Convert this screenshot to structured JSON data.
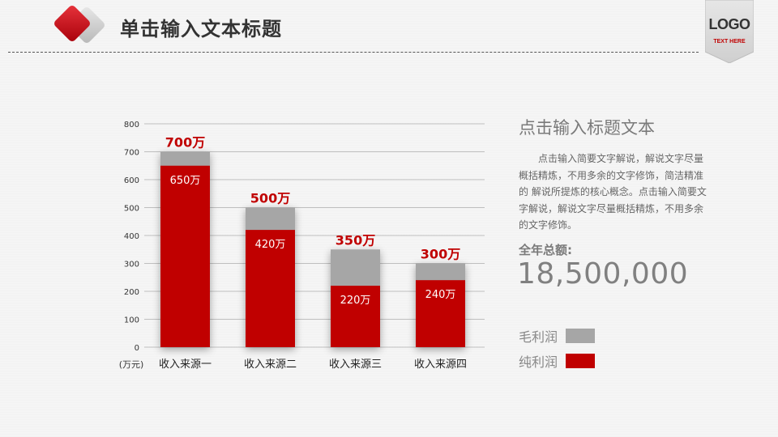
{
  "header": {
    "title": "单击输入文本标题",
    "logo": "LOGO",
    "logo_subtitle": "TEXT HERE"
  },
  "colors": {
    "accent": "#c00000",
    "gross": "#a6a6a6",
    "net": "#c00000"
  },
  "panel": {
    "title": "点击输入标题文本",
    "description": "点击输入简要文字解说，解说文字尽量概括精炼，不用多余的文字修饰，简洁精准的 解说所提炼的核心概念。点击输入简要文字解说，解说文字尽量概括精炼，不用多余的文字修饰。",
    "total_label": "全年总额:",
    "total_value": "18,500,000"
  },
  "chart_data": {
    "type": "bar",
    "xlabel": "(万元)",
    "ylabel": "",
    "ylim": [
      0,
      800
    ],
    "yticks": [
      0,
      100,
      200,
      300,
      400,
      500,
      600,
      700,
      800
    ],
    "grid": true,
    "legend_position": "right",
    "categories": [
      "收入来源一",
      "收入来源二",
      "收入来源三",
      "收入来源四"
    ],
    "series": [
      {
        "name": "毛利润",
        "values": [
          700,
          500,
          350,
          300
        ],
        "labels": [
          "700万",
          "500万",
          "350万",
          "300万"
        ]
      },
      {
        "name": "纯利润",
        "values": [
          650,
          420,
          220,
          240
        ],
        "labels": [
          "650万",
          "420万",
          "220万",
          "240万"
        ]
      }
    ]
  }
}
